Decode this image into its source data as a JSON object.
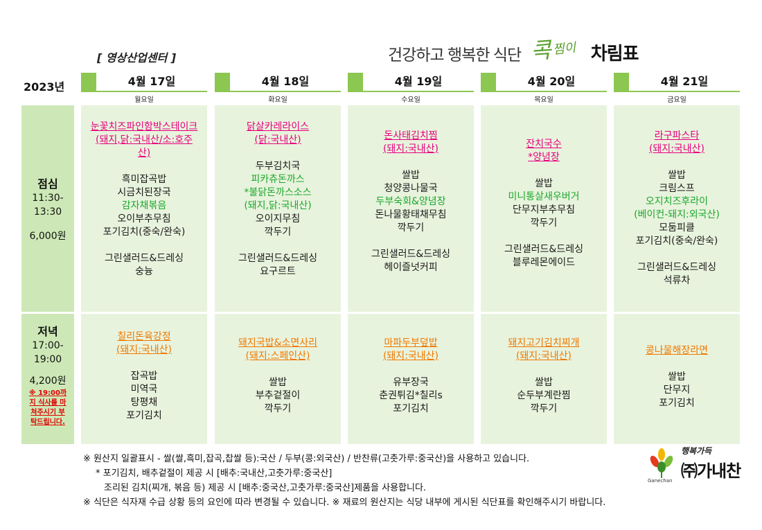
{
  "header": {
    "title_part1": "건강하고 행복한 식단",
    "brand_1": "콕",
    "brand_2": "찜이",
    "title_part2": "차림표",
    "center_name": "[ 영상산업센터 ]",
    "year": "2023년"
  },
  "colors": {
    "accent_green": "#8cc751",
    "cell_bg": "#e8f3dd",
    "side_bg": "#cde8b6",
    "pink": "#e6007e",
    "orange": "#f07800",
    "green_text": "#1aa82c"
  },
  "days": [
    {
      "date": "4월 17일",
      "weekday": "월요일"
    },
    {
      "date": "4월 18일",
      "weekday": "화요일"
    },
    {
      "date": "4월 19일",
      "weekday": "수요일"
    },
    {
      "date": "4월 20일",
      "weekday": "목요일"
    },
    {
      "date": "4월 21일",
      "weekday": "금요일"
    }
  ],
  "lunch": {
    "name": "점심",
    "time_start": "11:30-",
    "time_end": "13:30",
    "price": "6,000원",
    "menus": [
      {
        "main": [
          "눈꽃치즈파인함박스테이크",
          "(돼지,닭:국내산/소:호주",
          "산)"
        ],
        "items": [
          "흑미잡곡밥",
          "시금치된장국"
        ],
        "green": [
          "감자채볶음"
        ],
        "items2": [
          "오이부추무침",
          "포기김치(중숙/완숙)"
        ],
        "extras": [
          "그린샐러드&드레싱",
          "숭늉"
        ]
      },
      {
        "main": [
          "닭살카레라이스",
          "(닭:국내산)"
        ],
        "items": [
          "두부김치국"
        ],
        "green": [
          "피카츄돈까스",
          "*불닭돈까스소스",
          "(돼지,닭:국내산)"
        ],
        "items2": [
          "오이지무침",
          "깍두기"
        ],
        "extras": [
          "그린샐러드&드레싱",
          "요구르트"
        ]
      },
      {
        "main": [
          "돈사태김치찜",
          "(돼지:국내산)"
        ],
        "items": [
          "쌀밥",
          "청양콩나물국"
        ],
        "green": [
          "두부숙회&양념장"
        ],
        "items2": [
          "돈나물황태채무침",
          "깍두기"
        ],
        "extras": [
          "그린샐러드&드레싱",
          "헤이즐넛커피"
        ]
      },
      {
        "main": [
          "잔치국수",
          "*양념장"
        ],
        "items": [
          "쌀밥"
        ],
        "green": [
          "미니통살새우버거"
        ],
        "items2": [
          "단무지부추무침",
          "깍두기"
        ],
        "extras": [
          "그린샐러드&드레싱",
          "블루레몬에이드"
        ]
      },
      {
        "main": [
          "라구파스타",
          "(돼지:국내산)"
        ],
        "items": [
          "쌀밥",
          "크림스프"
        ],
        "green": [
          "오지치즈후라이",
          "(베이컨-돼지:외국산)"
        ],
        "items2": [
          "모둠피클",
          "포기김치(중숙/완숙)"
        ],
        "extras": [
          "그린샐러드&드레싱",
          "석류차"
        ]
      }
    ]
  },
  "dinner": {
    "name": "저녁",
    "time_start": "17:00-",
    "time_end": "19:00",
    "price": "4,200원",
    "note": [
      "※ 19:00까",
      "지 식사를 마",
      "쳐주시기 부",
      "탁드립니다."
    ],
    "menus": [
      {
        "main": [
          "칠리돈육강정",
          "(돼지:국내산)"
        ],
        "items": [
          "잡곡밥",
          "미역국",
          "탕평채",
          "포기김치"
        ]
      },
      {
        "main": [
          "돼지국밥&소면사리",
          "(돼지:스페인산)"
        ],
        "items": [
          "쌀밥",
          "부추겉절이",
          "깍두기"
        ]
      },
      {
        "main": [
          "마파두부덮밥",
          "(돼지:국내산)"
        ],
        "items": [
          "유부장국",
          "춘권튀김*칠리s",
          "포기김치"
        ]
      },
      {
        "main": [
          "돼지고기김치찌개",
          "(돼지:국내산)"
        ],
        "items": [
          "쌀밥",
          "순두부계란찜",
          "깍두기"
        ]
      },
      {
        "main": [
          "콩나물해장라면"
        ],
        "items": [
          "쌀밥",
          "단무지",
          "포기김치"
        ]
      }
    ]
  },
  "notes": [
    "※ 원산지 일괄표시 - 쌀(쌀,흑미,잡곡,찹쌀 등):국산 / 두부(콩:외국산) / 반찬류(고춧가루:중국산)을 사용하고 있습니다.",
    "* 포기김치, 배추겉절이 제공 시 [배추:국내산,고춧가루:중국산]",
    "조리된 김치(찌개, 볶음 등) 제공 시  [배추:중국산,고춧가루:중국산]제품을 사용합니다.",
    "※ 식단은 식자재 수급 상황 등의 요인에 따라 변경될 수 있습니다. ※ 재료의 원산지는 식당 내부에 게시된 식단표를 확인해주시기 바랍니다."
  ],
  "logo": {
    "small": "행복가득",
    "big": "㈜가내찬",
    "tiny": "Ganechan"
  }
}
